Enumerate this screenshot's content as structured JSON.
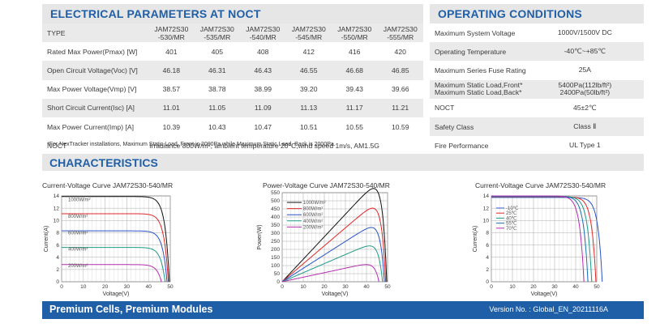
{
  "electrical": {
    "title": "ELECTRICAL PARAMETERS AT NOCT",
    "type_label": "TYPE",
    "models": [
      [
        "JAM72S30",
        "-530/MR"
      ],
      [
        "JAM72S30",
        "-535/MR"
      ],
      [
        "JAM72S30",
        "-540/MR"
      ],
      [
        "JAM72S30",
        "-545/MR"
      ],
      [
        "JAM72S30",
        "-550/MR"
      ],
      [
        "JAM72S30",
        "-555/MR"
      ]
    ],
    "rows": [
      {
        "label": "Rated Max Power(Pmax) [W]",
        "values": [
          "401",
          "405",
          "408",
          "412",
          "416",
          "420"
        ]
      },
      {
        "label": "Open Circuit Voltage(Voc) [V]",
        "values": [
          "46.18",
          "46.31",
          "46.43",
          "46.55",
          "46.68",
          "46.85"
        ]
      },
      {
        "label": "Max Power Voltage(Vmp) [V]",
        "values": [
          "38.57",
          "38.78",
          "38.99",
          "39.20",
          "39.43",
          "39.66"
        ]
      },
      {
        "label": "Short Circuit Current(Isc) [A]",
        "values": [
          "11.01",
          "11.05",
          "11.09",
          "11.13",
          "11.17",
          "11.21"
        ]
      },
      {
        "label": "Max Power Current(Imp) [A]",
        "values": [
          "10.39",
          "10.43",
          "10.47",
          "10.51",
          "10.55",
          "10.59"
        ]
      }
    ],
    "noct_label": "NOCT",
    "noct_value": "Irradiance 800W/m², ambient temperature 20°C,wind speed 1m/s, AM1.5G",
    "footnote": "*For NexTracker installations, Maximum Static Load, Front is 2000Pa while Maximum Static Load, Back is 2000Pa."
  },
  "operating": {
    "title": "OPERATING CONDITIONS",
    "rows": [
      {
        "label": "Maximum System Voltage",
        "value": "1000V/1500V DC"
      },
      {
        "label": "Operating Temperature",
        "value": "-40℃~+85℃"
      },
      {
        "label": "Maximum Series Fuse Rating",
        "value": "25A"
      },
      {
        "label": "Maximum Static Load,Front*",
        "label2": "Maximum Static Load,Back*",
        "value": "5400Pa(112lb/ft²)",
        "value2": "2400Pa(50lb/ft²)"
      },
      {
        "label": "NOCT",
        "value": "45±2℃"
      },
      {
        "label": "Safety Class",
        "value": "Class Ⅱ"
      },
      {
        "label": "Fire Performance",
        "value": "UL Type 1"
      }
    ]
  },
  "characteristics_title": "CHARACTERISTICS",
  "chart_data": [
    {
      "type": "line",
      "title": "Current-Voltage Curve   JAM72S30-540/MR",
      "xlabel": "Voltage(V)",
      "ylabel": "Current(A)",
      "xlim": [
        0,
        50
      ],
      "ylim": [
        0,
        14
      ],
      "xticks": [
        0,
        10,
        20,
        30,
        40,
        50
      ],
      "yticks": [
        0,
        2,
        4,
        6,
        8,
        10,
        12,
        14
      ],
      "grid": true,
      "series": [
        {
          "name": "1000W/m²",
          "color": "#111111",
          "isc": 13.9,
          "voc": 49.6
        },
        {
          "name": "800W/m²",
          "color": "#e02828",
          "isc": 11.1,
          "voc": 49.1
        },
        {
          "name": "600W/m²",
          "color": "#2a52c9",
          "isc": 8.3,
          "voc": 48.5
        },
        {
          "name": "400W/m²",
          "color": "#1f9a86",
          "isc": 5.6,
          "voc": 47.6
        },
        {
          "name": "200W/m²",
          "color": "#b52fae",
          "isc": 2.8,
          "voc": 45.9
        }
      ]
    },
    {
      "type": "line",
      "title": "Power-Voltage Curve   JAM72S30-540/MR",
      "xlabel": "Voltage(V)",
      "ylabel": "Power(W)",
      "xlim": [
        0,
        50
      ],
      "ylim": [
        0,
        550
      ],
      "xticks": [
        0,
        10,
        20,
        30,
        40,
        50
      ],
      "yticks": [
        0,
        50,
        100,
        150,
        200,
        250,
        300,
        350,
        400,
        450,
        500,
        550
      ],
      "grid": true,
      "series": [
        {
          "name": "1000W/m²",
          "color": "#111111",
          "isc": 13.9,
          "voc": 49.6
        },
        {
          "name": "800W/m²",
          "color": "#e02828",
          "isc": 11.1,
          "voc": 49.1
        },
        {
          "name": "600W/m²",
          "color": "#2a52c9",
          "isc": 8.3,
          "voc": 48.5
        },
        {
          "name": "400W/m²",
          "color": "#1f9a86",
          "isc": 5.6,
          "voc": 47.6
        },
        {
          "name": "200W/m²",
          "color": "#b52fae",
          "isc": 2.8,
          "voc": 45.9
        }
      ]
    },
    {
      "type": "line",
      "title": "Current-Voltage Curve   JAM72S30-540/MR",
      "xlabel": "Voltage(V)",
      "ylabel": "Current(A)",
      "xlim": [
        0,
        50
      ],
      "ylim": [
        0,
        14
      ],
      "xticks": [
        0,
        10,
        20,
        30,
        40,
        50
      ],
      "yticks": [
        0,
        2,
        4,
        6,
        8,
        10,
        12,
        14
      ],
      "grid": true,
      "series": [
        {
          "name": "-10℃",
          "color": "#2a52c9",
          "isc": 13.75,
          "voc": 52.6
        },
        {
          "name": "25℃",
          "color": "#e02828",
          "isc": 13.85,
          "voc": 49.6
        },
        {
          "name": "40℃",
          "color": "#1f9a86",
          "isc": 13.9,
          "voc": 47.6
        },
        {
          "name": "55℃",
          "color": "#1a6fb2",
          "isc": 13.95,
          "voc": 45.8
        },
        {
          "name": "70℃",
          "color": "#b52fae",
          "isc": 14.0,
          "voc": 43.9
        }
      ]
    }
  ],
  "footer": {
    "tagline": "Premium Cells, Premium Modules",
    "version": "Version No. : Global_EN_20211116A"
  }
}
